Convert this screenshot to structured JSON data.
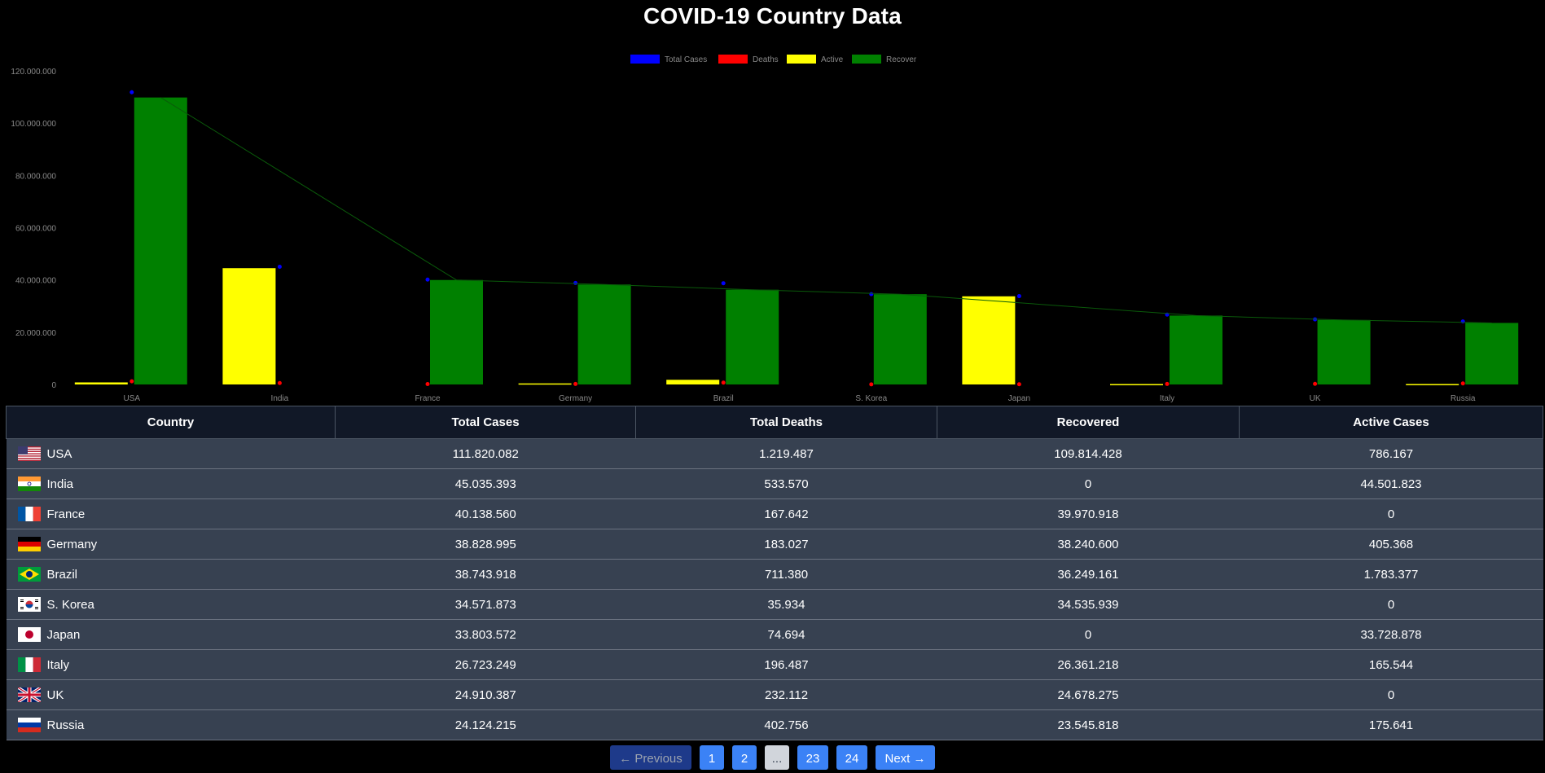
{
  "page": {
    "title": "COVID-19 Country Data"
  },
  "chart_data": {
    "type": "bar",
    "categories": [
      "USA",
      "India",
      "France",
      "Germany",
      "Brazil",
      "S. Korea",
      "Japan",
      "Italy",
      "UK",
      "Russia"
    ],
    "series": [
      {
        "name": "Total Cases",
        "color": "#0000ff",
        "style": "point",
        "values": [
          111820082,
          45035393,
          40138560,
          38828995,
          38743918,
          34571873,
          33803572,
          26723249,
          24910387,
          24124215
        ]
      },
      {
        "name": "Deaths",
        "color": "#ff0000",
        "style": "point",
        "values": [
          1219487,
          533570,
          167642,
          183027,
          711380,
          35934,
          74694,
          196487,
          232112,
          402756
        ]
      },
      {
        "name": "Active",
        "color": "#ffff00",
        "style": "bar",
        "values": [
          786167,
          44501823,
          0,
          405368,
          1783377,
          0,
          33728878,
          165544,
          0,
          175641
        ]
      },
      {
        "name": "Recover",
        "color": "#008000",
        "style": "bar",
        "values": [
          109814428,
          0,
          39970918,
          38240600,
          36249161,
          34535939,
          0,
          26361218,
          24678275,
          23545818
        ]
      }
    ],
    "ylim": [
      0,
      120000000
    ],
    "yticks": [
      "0",
      "20.000.000",
      "40.000.000",
      "60.000.000",
      "80.000.000",
      "100.000.000",
      "120.000.000"
    ],
    "legend": "top-center",
    "grid": false
  },
  "table": {
    "headers": [
      "Country",
      "Total Cases",
      "Total Deaths",
      "Recovered",
      "Active Cases"
    ],
    "rows": [
      {
        "country": "USA",
        "flag": "us",
        "total": "111.820.082",
        "deaths": "1.219.487",
        "recovered": "109.814.428",
        "active": "786.167"
      },
      {
        "country": "India",
        "flag": "in",
        "total": "45.035.393",
        "deaths": "533.570",
        "recovered": "0",
        "active": "44.501.823"
      },
      {
        "country": "France",
        "flag": "fr",
        "total": "40.138.560",
        "deaths": "167.642",
        "recovered": "39.970.918",
        "active": "0"
      },
      {
        "country": "Germany",
        "flag": "de",
        "total": "38.828.995",
        "deaths": "183.027",
        "recovered": "38.240.600",
        "active": "405.368"
      },
      {
        "country": "Brazil",
        "flag": "br",
        "total": "38.743.918",
        "deaths": "711.380",
        "recovered": "36.249.161",
        "active": "1.783.377"
      },
      {
        "country": "S. Korea",
        "flag": "kr",
        "total": "34.571.873",
        "deaths": "35.934",
        "recovered": "34.535.939",
        "active": "0"
      },
      {
        "country": "Japan",
        "flag": "jp",
        "total": "33.803.572",
        "deaths": "74.694",
        "recovered": "0",
        "active": "33.728.878"
      },
      {
        "country": "Italy",
        "flag": "it",
        "total": "26.723.249",
        "deaths": "196.487",
        "recovered": "26.361.218",
        "active": "165.544"
      },
      {
        "country": "UK",
        "flag": "gb",
        "total": "24.910.387",
        "deaths": "232.112",
        "recovered": "24.678.275",
        "active": "0"
      },
      {
        "country": "Russia",
        "flag": "ru",
        "total": "24.124.215",
        "deaths": "402.756",
        "recovered": "23.545.818",
        "active": "175.641"
      }
    ]
  },
  "pagination": {
    "previous": "← Previous",
    "pages": [
      "1",
      "2",
      "...",
      "23",
      "24"
    ],
    "next": "Next →"
  }
}
